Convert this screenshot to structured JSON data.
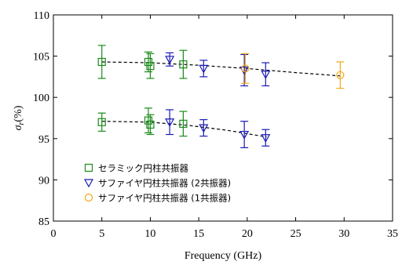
{
  "chart_data": {
    "type": "scatter",
    "xlabel": "Frequency (GHz)",
    "ylabel_main": "σ",
    "ylabel_sub": "r",
    "ylabel_unit": "(%)",
    "xlim": [
      0,
      35
    ],
    "ylim": [
      85,
      110
    ],
    "x_ticks": [
      0,
      5,
      10,
      15,
      20,
      25,
      30,
      35
    ],
    "y_ticks": [
      85,
      90,
      95,
      100,
      105,
      110
    ],
    "x_tick_labels": [
      "0",
      "5",
      "10",
      "15",
      "20",
      "25",
      "30",
      "35"
    ],
    "y_tick_labels": [
      "85",
      "90",
      "95",
      "100",
      "105",
      "110"
    ],
    "grid": false,
    "legend_position": "bottom-left",
    "series": [
      {
        "name": "セラミック円柱共振器",
        "marker": "square",
        "color": "#1a8a1a",
        "points": [
          {
            "x": 5.0,
            "y": 104.3,
            "err": 2.0
          },
          {
            "x": 9.8,
            "y": 104.3,
            "err": 1.2
          },
          {
            "x": 10.0,
            "y": 103.8,
            "err": 1.5
          },
          {
            "x": 13.4,
            "y": 104.0,
            "err": 1.7
          },
          {
            "x": 5.0,
            "y": 97.0,
            "err": 1.1
          },
          {
            "x": 9.8,
            "y": 97.2,
            "err": 1.5
          },
          {
            "x": 10.0,
            "y": 96.7,
            "err": 1.2
          },
          {
            "x": 13.4,
            "y": 96.8,
            "err": 1.5
          }
        ]
      },
      {
        "name": "サファイヤ円柱共振器 (2共振器)",
        "marker": "triangle-down",
        "color": "#1a1ab4",
        "points": [
          {
            "x": 12.0,
            "y": 104.6,
            "err": 0.8
          },
          {
            "x": 15.5,
            "y": 103.5,
            "err": 1.0
          },
          {
            "x": 19.7,
            "y": 103.3,
            "err": 1.9
          },
          {
            "x": 21.9,
            "y": 102.8,
            "err": 1.4
          },
          {
            "x": 12.0,
            "y": 97.0,
            "err": 1.5
          },
          {
            "x": 15.5,
            "y": 96.3,
            "err": 1.0
          },
          {
            "x": 19.7,
            "y": 95.5,
            "err": 1.6
          },
          {
            "x": 21.9,
            "y": 95.1,
            "err": 1.0
          }
        ]
      },
      {
        "name": "サファイヤ円柱共振器 (1共振器)",
        "marker": "circle",
        "color": "#f0a91a",
        "points": [
          {
            "x": 19.8,
            "y": 103.5,
            "err": 1.8
          },
          {
            "x": 29.6,
            "y": 102.7,
            "err": 1.6
          }
        ]
      }
    ],
    "fit_lines": [
      {
        "style": "dashed",
        "color": "#000000",
        "points": [
          [
            5,
            104.3
          ],
          [
            10,
            104.2
          ],
          [
            15,
            103.9
          ],
          [
            20,
            103.5
          ],
          [
            25,
            103.0
          ],
          [
            29.6,
            102.6
          ]
        ]
      },
      {
        "style": "dashed",
        "color": "#000000",
        "points": [
          [
            5,
            97.1
          ],
          [
            10,
            97.0
          ],
          [
            14,
            96.6
          ],
          [
            18,
            96.0
          ],
          [
            22,
            95.2
          ]
        ]
      }
    ]
  }
}
